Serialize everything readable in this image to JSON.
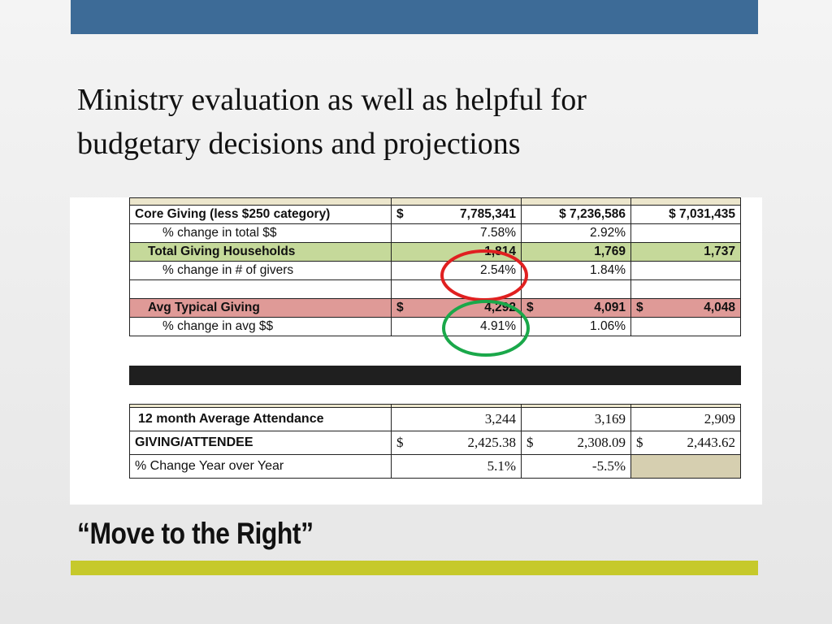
{
  "slide": {
    "body_line1": "Ministry evaluation as well as helpful for",
    "body_line2": "budgetary decisions and projections",
    "title": "“Move to the Right”",
    "colors": {
      "top_bar": "#3d6b97",
      "bottom_bar": "#c6c92b",
      "green_row": "#c5d99a",
      "red_row": "#df9a97",
      "red_circle": "#e02020",
      "green_circle": "#1aa84a"
    }
  },
  "table1": {
    "core_giving": {
      "label": "Core Giving (less $250 category)",
      "cur": "$",
      "v1": "7,785,341",
      "v2": "$  7,236,586",
      "v3": "$  7,031,435"
    },
    "pct_total": {
      "label": "% change in total $$",
      "v1": "7.58%",
      "v2": "2.92%",
      "v3": ""
    },
    "households": {
      "label": "Total  Giving Households",
      "v1": "1,814",
      "v2": "1,769",
      "v3": "1,737"
    },
    "pct_givers": {
      "label": "% change in # of givers",
      "v1": "2.54%",
      "v2": "1.84%",
      "v3": ""
    },
    "avg_giving": {
      "label": "Avg Typical Giving",
      "cur": "$",
      "v1": "4,292",
      "v2": "4,091",
      "v3": "4,048"
    },
    "pct_avg": {
      "label": "% change in avg $$",
      "v1": "4.91%",
      "v2": "1.06%",
      "v3": ""
    }
  },
  "table2": {
    "attendance": {
      "label": "12 month Average Attendance",
      "v1": "3,244",
      "v2": "3,169",
      "v3": "2,909"
    },
    "giving_attendee": {
      "label": "GIVING/ATTENDEE",
      "cur": "$",
      "v1": "2,425.38",
      "v2": "2,308.09",
      "v3": "2,443.62"
    },
    "yoy": {
      "label": "% Change Year over Year",
      "v1": "5.1%",
      "v2": "-5.5%",
      "v3": ""
    }
  }
}
